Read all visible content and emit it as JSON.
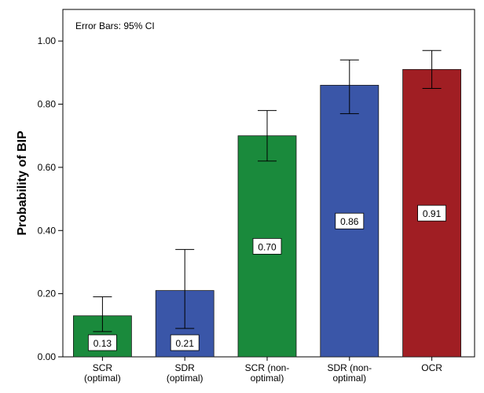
{
  "chart_data": {
    "type": "bar",
    "note": "Error Bars: 95% CI",
    "ylabel": "Probability of BIP",
    "xlabel": "",
    "ylim": [
      0,
      1.1
    ],
    "yticks": [
      "0.00",
      "0.20",
      "0.40",
      "0.60",
      "0.80",
      "1.00"
    ],
    "grid": false,
    "categories": [
      [
        "SCR",
        "(optimal)"
      ],
      [
        "SDR",
        "(optimal)"
      ],
      [
        "SCR (non-",
        "optimal)"
      ],
      [
        "SDR (non-",
        "optimal)"
      ],
      [
        "OCR"
      ]
    ],
    "values": [
      0.13,
      0.21,
      0.7,
      0.86,
      0.91
    ],
    "value_labels": [
      "0.13",
      "0.21",
      "0.70",
      "0.86",
      "0.91"
    ],
    "error_low": [
      0.08,
      0.09,
      0.62,
      0.77,
      0.85
    ],
    "error_high": [
      0.19,
      0.34,
      0.78,
      0.94,
      0.97
    ],
    "colors": [
      "#1a8a3c",
      "#3a56a8",
      "#1a8a3c",
      "#3a56a8",
      "#a01e23"
    ]
  }
}
